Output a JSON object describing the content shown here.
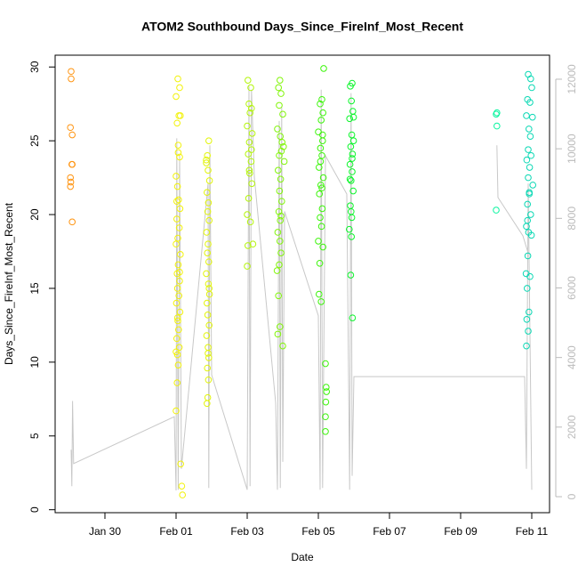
{
  "chart_data": {
    "type": "scatter",
    "title": "ATOM2 Southbound Days_Since_FireInf_Most_Recent",
    "xlabel": "Date",
    "ylabel": "Days_Since_FireInf_Most_Recent",
    "xlim": [
      -1.4,
      12.5
    ],
    "ylim": [
      -0.2,
      30.8
    ],
    "y2lim": [
      -460,
      12690
    ],
    "xticks": [
      {
        "value": 0,
        "label": "Jan 30"
      },
      {
        "value": 2,
        "label": "Feb 01"
      },
      {
        "value": 4,
        "label": "Feb 03"
      },
      {
        "value": 6,
        "label": "Feb 05"
      },
      {
        "value": 8,
        "label": "Feb 07"
      },
      {
        "value": 10,
        "label": "Feb 09"
      },
      {
        "value": 12,
        "label": "Feb 11"
      }
    ],
    "yticks": [
      0,
      5,
      10,
      15,
      20,
      25,
      30
    ],
    "y2ticks": [
      0,
      2000,
      4000,
      6000,
      8000,
      10000,
      12000
    ],
    "y2color": "#bbbbbb",
    "series": [
      {
        "color": "#ff9410",
        "x": [
          -0.95,
          -0.95,
          -0.97,
          -0.92,
          -0.93,
          -0.92,
          -0.97,
          -0.96,
          -0.97,
          -0.92
        ],
        "values": [
          29.7,
          29.2,
          25.9,
          25.4,
          23.4,
          23.4,
          22.5,
          22.2,
          21.9,
          19.5
        ]
      },
      {
        "color": "#f2f20a",
        "x": [
          2.05,
          2.1,
          2.0,
          2.08,
          2.12,
          2.03,
          2.06,
          2.1,
          2.0,
          2.04,
          2.07,
          2.11,
          2.02,
          2.09,
          2.05,
          2.0,
          2.12,
          2.06,
          2.03,
          2.1,
          2.04,
          2.08,
          2.01,
          2.11,
          2.05,
          2.07,
          2.02,
          2.09,
          2.04,
          2.06,
          2.03,
          2.0,
          2.13,
          2.16,
          2.18,
          2.06,
          2.02,
          2.1,
          2.04,
          2.0
        ],
        "values": [
          29.2,
          28.6,
          28.0,
          26.7,
          26.7,
          26.2,
          24.2,
          23.9,
          22.6,
          21.9,
          21.0,
          20.4,
          19.7,
          19.1,
          18.4,
          18.0,
          17.3,
          16.6,
          16.0,
          15.5,
          15.0,
          14.5,
          14.0,
          13.4,
          12.8,
          12.2,
          11.6,
          11.0,
          10.5,
          9.8,
          8.6,
          6.7,
          3.1,
          1.6,
          1.0,
          24.7,
          20.9,
          16.1,
          13.0,
          10.7
        ]
      },
      {
        "color": "#e2f50a",
        "x": [
          2.92,
          2.88,
          2.85,
          2.9,
          2.94,
          2.87,
          2.91,
          2.89,
          2.93,
          2.86,
          2.9,
          2.88,
          2.92,
          2.85,
          2.91,
          2.94,
          2.87,
          2.89,
          2.93,
          2.86,
          2.9,
          2.92,
          2.88,
          2.91,
          2.89,
          2.87,
          2.85,
          2.93,
          2.9
        ],
        "values": [
          25.0,
          24.0,
          23.5,
          23.0,
          22.3,
          21.5,
          20.8,
          20.2,
          19.6,
          18.8,
          18.0,
          17.4,
          16.8,
          16.0,
          15.3,
          14.6,
          14.0,
          13.2,
          12.5,
          11.8,
          11.0,
          10.3,
          9.6,
          8.8,
          7.6,
          7.2,
          23.7,
          15.0,
          10.6
        ]
      },
      {
        "color": "#b4f50a",
        "x": [
          4.02,
          4.1,
          4.05,
          4.12,
          4.08,
          4.0,
          4.14,
          4.06,
          4.03,
          4.11,
          4.07,
          4.13,
          4.04,
          4.0,
          4.09,
          4.16,
          4.02,
          4.0,
          4.12,
          4.06
        ],
        "values": [
          29.1,
          28.6,
          27.5,
          27.2,
          26.9,
          26.0,
          25.5,
          24.9,
          24.1,
          23.6,
          22.8,
          22.1,
          21.1,
          20.0,
          19.5,
          18.0,
          17.9,
          16.5,
          24.4,
          23.0
        ]
      },
      {
        "color": "#82f50a",
        "x": [
          4.92,
          4.88,
          4.95,
          4.9,
          5.0,
          4.85,
          4.93,
          4.98,
          5.02,
          4.96,
          4.9,
          5.04,
          4.87,
          4.94,
          4.91,
          4.97,
          4.89,
          4.93,
          4.86,
          4.92,
          4.95,
          4.9,
          4.84,
          4.92,
          4.86,
          5.0,
          4.88,
          4.95
        ],
        "values": [
          29.1,
          28.6,
          28.2,
          27.4,
          26.8,
          25.8,
          25.3,
          24.9,
          24.6,
          24.3,
          24.0,
          23.6,
          23.0,
          22.4,
          21.6,
          20.9,
          20.2,
          19.6,
          18.8,
          18.2,
          17.4,
          16.6,
          16.2,
          12.4,
          11.9,
          11.1,
          14.5,
          19.9
        ]
      },
      {
        "color": "#3cf50a",
        "x": [
          6.15,
          6.1,
          6.05,
          6.13,
          6.08,
          6.0,
          6.12,
          6.06,
          6.1,
          6.02,
          6.14,
          6.07,
          6.03,
          6.11,
          6.05,
          6.09,
          6.0,
          6.13,
          6.04,
          6.02,
          6.08,
          6.2,
          6.22,
          6.23,
          6.21,
          6.2,
          6.2,
          6.12,
          6.06,
          6.1
        ],
        "values": [
          29.9,
          27.8,
          27.5,
          26.9,
          26.4,
          25.6,
          25.0,
          24.5,
          24.0,
          23.2,
          22.5,
          22.0,
          21.4,
          20.4,
          19.8,
          19.2,
          18.2,
          17.8,
          16.7,
          14.6,
          14.1,
          9.9,
          8.3,
          8.0,
          7.3,
          6.3,
          5.3,
          25.4,
          23.6,
          21.8
        ]
      },
      {
        "color": "#0af52a",
        "x": [
          6.95,
          6.9,
          6.93,
          6.97,
          6.88,
          6.94,
          6.99,
          6.91,
          6.96,
          6.89,
          6.95,
          6.92,
          6.98,
          6.9,
          6.94,
          6.87,
          6.93,
          6.91,
          6.96,
          6.99,
          6.95,
          6.89,
          6.92
        ],
        "values": [
          28.9,
          28.7,
          27.7,
          27.0,
          26.5,
          25.4,
          25.0,
          24.6,
          24.1,
          23.4,
          22.9,
          22.3,
          21.6,
          20.6,
          19.8,
          19.0,
          18.5,
          15.9,
          13.0,
          26.6,
          23.8,
          22.4,
          20.2
        ]
      },
      {
        "color": "#0af5a0",
        "x": [
          11.02,
          11.0,
          11.02,
          11.0
        ],
        "values": [
          26.9,
          26.8,
          26.0,
          20.3
        ]
      },
      {
        "color": "#0ad8b4",
        "x": [
          11.9,
          11.97,
          12.0,
          11.88,
          11.95,
          11.85,
          12.02,
          11.92,
          11.96,
          11.9,
          11.98,
          11.86,
          11.94,
          11.9,
          12.03,
          11.93,
          11.88,
          11.97,
          11.85,
          11.91,
          11.99,
          11.89,
          11.84,
          11.95,
          11.87,
          11.92,
          11.86,
          11.9,
          11.85,
          11.88,
          11.93
        ],
        "values": [
          29.5,
          29.2,
          28.6,
          27.8,
          27.6,
          26.7,
          26.6,
          25.8,
          25.3,
          24.4,
          24.0,
          23.7,
          23.2,
          22.5,
          22.0,
          21.4,
          20.7,
          20.0,
          19.2,
          18.8,
          18.6,
          17.2,
          16.0,
          15.8,
          15.0,
          13.4,
          12.9,
          12.1,
          11.1,
          19.6,
          21.5
        ]
      },
      {
        "type": "line",
        "axis": "y2",
        "color": "#c8c8c8",
        "x": [
          -0.95,
          -0.93,
          -0.91,
          -0.88,
          1.95,
          2.0,
          2.02,
          2.06,
          2.1,
          2.15,
          2.9,
          2.92,
          2.95,
          3.0,
          4.0,
          4.05,
          4.08,
          4.12,
          4.2,
          4.8,
          4.85,
          4.9,
          4.93,
          4.97,
          5.0,
          5.05,
          6.0,
          6.05,
          6.08,
          6.12,
          6.2,
          6.8,
          6.85,
          6.88,
          6.92,
          6.95,
          7.0,
          11.8,
          11.85,
          11.9,
          12.0,
          null,
          11.02,
          11.05,
          11.75,
          11.9
        ],
        "values": [
          1350,
          300,
          2750,
          950,
          2300,
          180,
          10300,
          200,
          9800,
          800,
          9000,
          250,
          10100,
          3500,
          200,
          11800,
          300,
          11700,
          9200,
          2700,
          200,
          10800,
          250,
          11200,
          1000,
          8200,
          5200,
          200,
          11700,
          250,
          9800,
          8700,
          3400,
          200,
          11600,
          600,
          3450,
          3450,
          800,
          9000,
          200,
          null,
          10100,
          8600,
          7500,
          7000
        ]
      }
    ]
  }
}
